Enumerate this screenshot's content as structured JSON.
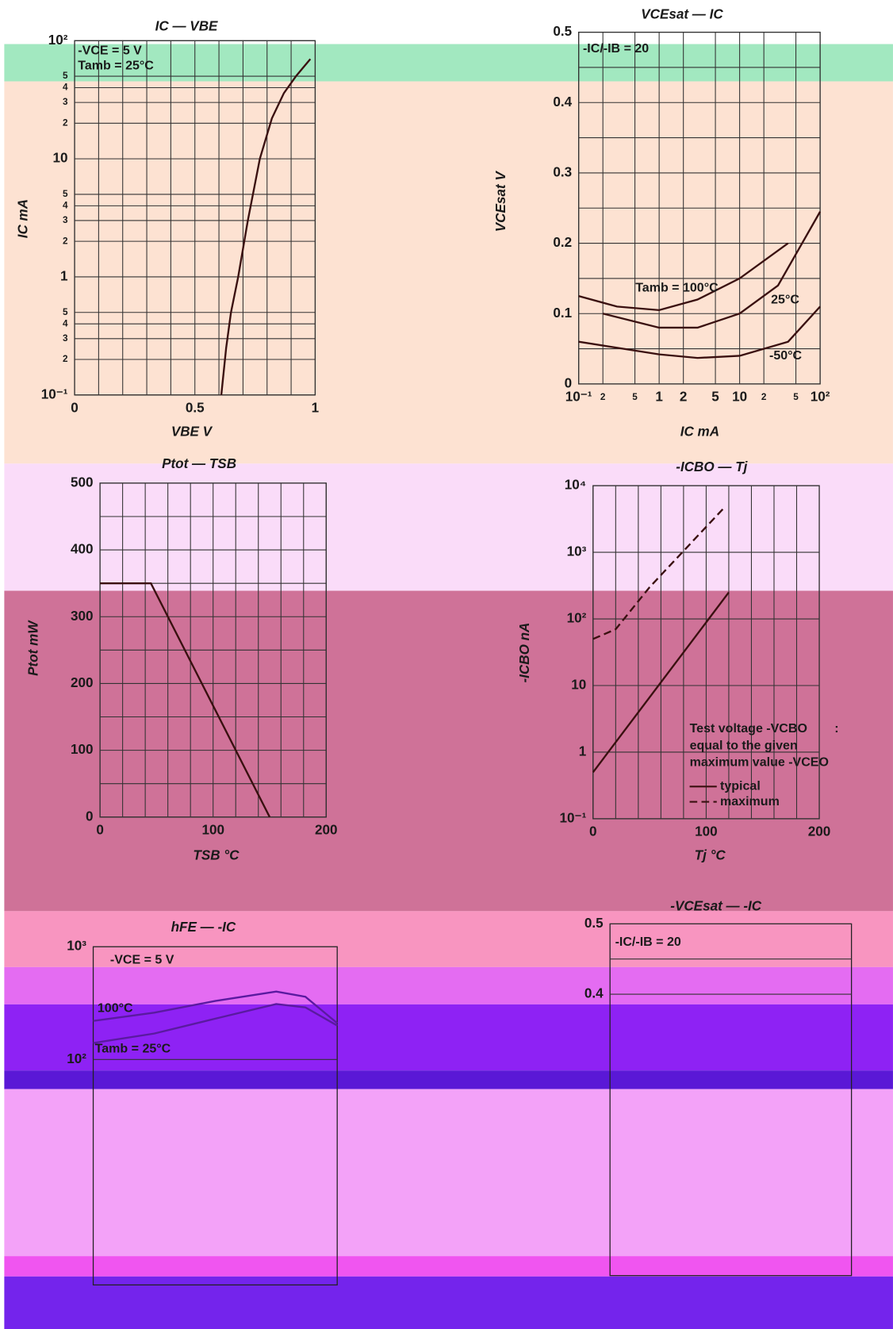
{
  "chart_data": [
    {
      "type": "line",
      "title": "IC — VBE",
      "xlabel": "VBE V",
      "ylabel": "IC mA",
      "xlim": [
        0,
        1
      ],
      "ylim": [
        0.1,
        100
      ],
      "ylog": true,
      "xticks": [
        0,
        0.5,
        1
      ],
      "yticks": [
        {
          "value": 0.1,
          "label": "10⁻¹"
        },
        {
          "value": 0.2,
          "label": "2"
        },
        {
          "value": 0.3,
          "label": "3"
        },
        {
          "value": 0.4,
          "label": "4"
        },
        {
          "value": 0.5,
          "label": "5"
        },
        1,
        2,
        3,
        4,
        5,
        10,
        {
          "value": 20,
          "label": "2"
        },
        {
          "value": 30,
          "label": "3"
        },
        {
          "value": 40,
          "label": "4"
        },
        {
          "value": 50,
          "label": "5"
        },
        {
          "value": 100,
          "label": "10²"
        }
      ],
      "annotations": [
        "-VCE = 5 V",
        "Tamb = 25°C"
      ],
      "series": [
        {
          "color": "#3a1010",
          "x": [
            0.61,
            0.63,
            0.65,
            0.68,
            0.72,
            0.77,
            0.82,
            0.87,
            0.92,
            0.98
          ],
          "values": [
            0.1,
            0.25,
            0.5,
            1,
            3,
            10,
            22,
            36,
            50,
            70
          ]
        }
      ]
    },
    {
      "type": "line",
      "title": "VCEsat — IC",
      "xlabel": "IC mA",
      "ylabel": "VCEsat V",
      "xlim": [
        0.1,
        100
      ],
      "ylim": [
        0,
        0.5
      ],
      "xlog": true,
      "xticks": [
        {
          "value": 0.1,
          "label": "10⁻¹"
        },
        {
          "value": 0.2,
          "label": "2"
        },
        {
          "value": 0.5,
          "label": "5"
        },
        1,
        2,
        5,
        10,
        {
          "value": 20,
          "label": "2"
        },
        {
          "value": 50,
          "label": "5"
        },
        {
          "value": 100,
          "label": "10²"
        }
      ],
      "yticks": [
        0,
        0.1,
        0.2,
        0.3,
        0.4,
        0.5
      ],
      "annotations": [
        "-IC/-IB = 20"
      ],
      "series": [
        {
          "name": "Tamb = 100°C",
          "color": "#3a1010",
          "x": [
            0.1,
            0.3,
            1,
            3,
            10,
            40
          ],
          "values": [
            0.125,
            0.11,
            0.105,
            0.12,
            0.15,
            0.2
          ]
        },
        {
          "name": "25°C",
          "color": "#3a1010",
          "x": [
            0.2,
            1,
            3,
            10,
            30,
            100
          ],
          "values": [
            0.1,
            0.08,
            0.08,
            0.1,
            0.14,
            0.245
          ]
        },
        {
          "name": "-50°C",
          "color": "#3a1010",
          "x": [
            0.1,
            1,
            3,
            10,
            40,
            100
          ],
          "values": [
            0.06,
            0.042,
            0.037,
            0.04,
            0.06,
            0.11
          ]
        }
      ]
    },
    {
      "type": "line",
      "title": "Ptot — TSB",
      "xlabel": "TSB °C",
      "ylabel": "Ptot mW",
      "xlim": [
        0,
        200
      ],
      "ylim": [
        0,
        500
      ],
      "xticks": [
        0,
        100,
        200
      ],
      "yticks": [
        0,
        100,
        200,
        300,
        400,
        500
      ],
      "series": [
        {
          "color": "#3a1010",
          "x": [
            0,
            45,
            150
          ],
          "values": [
            350,
            350,
            0
          ]
        }
      ]
    },
    {
      "type": "line",
      "title": "-ICBO — Tj",
      "xlabel": "Tj °C",
      "ylabel": "-ICBO nA",
      "xlim": [
        0,
        200
      ],
      "ylim": [
        0.1,
        10000
      ],
      "ylog": true,
      "xticks": [
        0,
        100,
        200
      ],
      "yticks": [
        {
          "value": 0.1,
          "label": "10⁻¹"
        },
        1,
        10,
        {
          "value": 100,
          "label": "10²"
        },
        {
          "value": 1000,
          "label": "10³"
        },
        {
          "value": 10000,
          "label": "10⁴"
        }
      ],
      "annotations": [
        "Test voltage -VCBO",
        ":",
        "equal to the given",
        "maximum value -VCEO"
      ],
      "series": [
        {
          "name": "typical",
          "color": "#3a1010",
          "x": [
            0,
            120
          ],
          "values": [
            0.5,
            250
          ]
        },
        {
          "name": "maximum",
          "color": "#3a1010",
          "dash": true,
          "x": [
            0,
            20,
            50,
            115
          ],
          "values": [
            50,
            70,
            300,
            4500
          ]
        }
      ]
    },
    {
      "type": "line",
      "title": "hFE — -IC",
      "xlim": [
        0.01,
        100
      ],
      "ylim": [
        1,
        1000
      ],
      "xlog": true,
      "ylog": true,
      "yticks": [
        {
          "value": 100,
          "label": "10²"
        },
        {
          "value": 1000,
          "label": "10³"
        }
      ],
      "annotations": [
        "-VCE = 5 V"
      ],
      "series": [
        {
          "name": "100°C",
          "color": "#5a1aa0",
          "x": [
            0.01,
            0.1,
            1,
            10,
            30,
            100
          ],
          "values": [
            220,
            260,
            330,
            400,
            360,
            210
          ]
        },
        {
          "name": "Tamb = 25°C",
          "color": "#5a1aa0",
          "x": [
            0.01,
            0.1,
            1,
            10,
            30,
            100
          ],
          "values": [
            140,
            170,
            230,
            310,
            290,
            200
          ]
        }
      ]
    },
    {
      "type": "line",
      "title": "-VCEsat — -IC",
      "ylim": [
        0,
        0.5
      ],
      "yticks": [
        0.4,
        0.5
      ],
      "annotations": [
        "-IC/-IB = 20"
      ]
    }
  ]
}
